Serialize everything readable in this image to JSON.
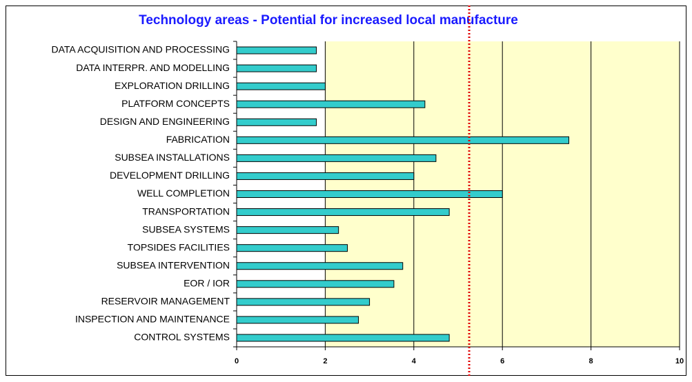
{
  "chart_data": {
    "type": "barh",
    "title": "Technology areas - Potential for increased local manufacture",
    "categories": [
      "DATA ACQUISITION AND PROCESSING",
      "DATA INTERPR. AND MODELLING",
      "EXPLORATION DRILLING",
      "PLATFORM CONCEPTS",
      "DESIGN AND ENGINEERING",
      "FABRICATION",
      "SUBSEA INSTALLATIONS",
      "DEVELOPMENT DRILLING",
      "WELL COMPLETION",
      "TRANSPORTATION",
      "SUBSEA SYSTEMS",
      "TOPSIDES FACILITIES",
      "SUBSEA INTERVENTION",
      "EOR / IOR",
      "RESERVOIR MANAGEMENT",
      "INSPECTION AND MAINTENANCE",
      "CONTROL SYSTEMS"
    ],
    "values": [
      1.8,
      1.8,
      2.0,
      4.25,
      1.8,
      7.5,
      4.5,
      4.0,
      6.0,
      4.8,
      2.3,
      2.5,
      3.75,
      3.55,
      3.0,
      2.75,
      4.8
    ],
    "color": "#33cccc",
    "xlim": [
      0,
      10
    ],
    "xticks": [
      0,
      2,
      4,
      6,
      8,
      10
    ],
    "grid": true,
    "reference_line": 5.25,
    "reference_color": "#e00000"
  }
}
